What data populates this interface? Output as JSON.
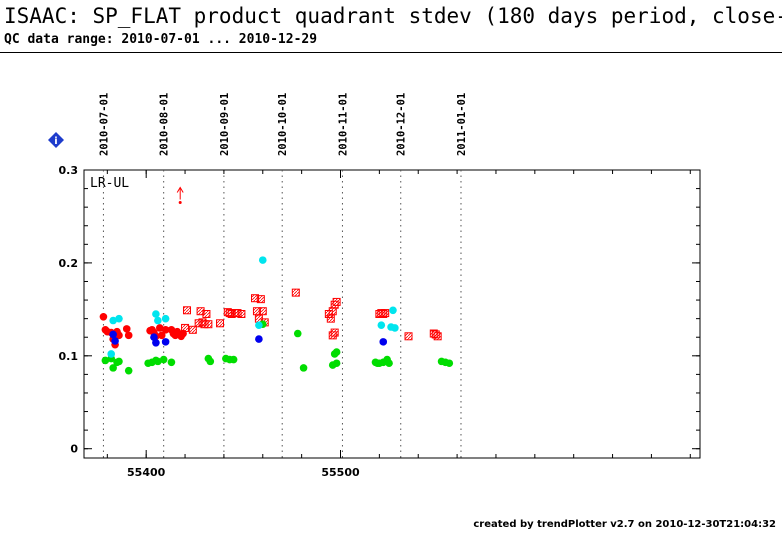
{
  "title": "ISAAC: SP_FLAT product quadrant stdev (180 days period, close-u",
  "subtitle": "QC data range: 2010-07-01 ... 2010-12-29",
  "footer": "created by trendPlotter v2.7 on 2010-12-30T21:04:32",
  "info_icon": "diamond-info-icon",
  "colors": {
    "red": "#ff0000",
    "green": "#00dd00",
    "blue": "#0000ee",
    "cyan": "#00e5ee",
    "marker_icon": "#1e3ccc"
  },
  "chart_data": {
    "type": "scatter",
    "panel_label": "LR-UL",
    "ylim": [
      -0.01,
      0.3
    ],
    "xlim": [
      55368,
      55685
    ],
    "yticks": [
      0,
      0.1,
      0.2,
      0.3
    ],
    "ytick_labels": [
      "0",
      "0.1",
      "0.2",
      "0.3"
    ],
    "xticks": [
      55400,
      55500
    ],
    "xtick_labels": [
      "55400",
      "55500"
    ],
    "date_markers": [
      {
        "label": "2010-07-01",
        "mjd": 55378
      },
      {
        "label": "2010-08-01",
        "mjd": 55409
      },
      {
        "label": "2010-09-01",
        "mjd": 55440
      },
      {
        "label": "2010-10-01",
        "mjd": 55470
      },
      {
        "label": "2010-11-01",
        "mjd": 55501
      },
      {
        "label": "2010-12-01",
        "mjd": 55531
      },
      {
        "label": "2011-01-01",
        "mjd": 55562
      }
    ],
    "outlier": {
      "x": 55417.5,
      "y": 0.265
    },
    "series": [
      {
        "marker": "red-dot",
        "points": [
          [
            55378,
            0.142
          ],
          [
            55379,
            0.128
          ],
          [
            55380,
            0.126
          ],
          [
            55382,
            0.125
          ],
          [
            55383,
            0.118
          ],
          [
            55384,
            0.112
          ],
          [
            55385,
            0.126
          ],
          [
            55386,
            0.122
          ],
          [
            55390,
            0.129
          ],
          [
            55391,
            0.122
          ],
          [
            55402,
            0.127
          ],
          [
            55403,
            0.128
          ],
          [
            55404,
            0.125
          ],
          [
            55405,
            0.121
          ],
          [
            55407,
            0.13
          ],
          [
            55408,
            0.122
          ],
          [
            55410,
            0.128
          ],
          [
            55413,
            0.128
          ],
          [
            55414,
            0.124
          ],
          [
            55415,
            0.122
          ],
          [
            55416,
            0.126
          ],
          [
            55417,
            0.123
          ],
          [
            55418,
            0.121
          ],
          [
            55419,
            0.124
          ]
        ]
      },
      {
        "marker": "red-hatched-square",
        "points": [
          [
            55420,
            0.13
          ],
          [
            55421,
            0.149
          ],
          [
            55424,
            0.128
          ],
          [
            55427,
            0.135
          ],
          [
            55428,
            0.148
          ],
          [
            55429,
            0.136
          ],
          [
            55430,
            0.134
          ],
          [
            55431,
            0.145
          ],
          [
            55432,
            0.134
          ],
          [
            55438,
            0.135
          ],
          [
            55442,
            0.147
          ],
          [
            55443,
            0.146
          ],
          [
            55444,
            0.145
          ],
          [
            55446,
            0.146
          ],
          [
            55447,
            0.146
          ],
          [
            55449,
            0.145
          ],
          [
            55456,
            0.162
          ],
          [
            55457,
            0.148
          ],
          [
            55458,
            0.14
          ],
          [
            55459,
            0.161
          ],
          [
            55460,
            0.148
          ],
          [
            55461,
            0.136
          ],
          [
            55477,
            0.168
          ],
          [
            55494,
            0.145
          ],
          [
            55495,
            0.14
          ],
          [
            55496,
            0.148
          ],
          [
            55497,
            0.155
          ],
          [
            55498,
            0.158
          ],
          [
            55497,
            0.125
          ],
          [
            55496,
            0.122
          ],
          [
            55520,
            0.145
          ],
          [
            55521,
            0.146
          ],
          [
            55522,
            0.145
          ],
          [
            55523,
            0.146
          ],
          [
            55535,
            0.121
          ],
          [
            55548,
            0.124
          ],
          [
            55549,
            0.123
          ],
          [
            55550,
            0.121
          ]
        ]
      },
      {
        "marker": "green-dot",
        "points": [
          [
            55379,
            0.095
          ],
          [
            55382,
            0.097
          ],
          [
            55383,
            0.087
          ],
          [
            55385,
            0.093
          ],
          [
            55386,
            0.094
          ],
          [
            55391,
            0.084
          ],
          [
            55401,
            0.092
          ],
          [
            55403,
            0.093
          ],
          [
            55405,
            0.095
          ],
          [
            55406,
            0.094
          ],
          [
            55409,
            0.096
          ],
          [
            55413,
            0.093
          ],
          [
            55432,
            0.097
          ],
          [
            55433,
            0.094
          ],
          [
            55441,
            0.097
          ],
          [
            55443,
            0.096
          ],
          [
            55445,
            0.096
          ],
          [
            55460,
            0.134
          ],
          [
            55478,
            0.124
          ],
          [
            55481,
            0.087
          ],
          [
            55496,
            0.09
          ],
          [
            55497,
            0.102
          ],
          [
            55498,
            0.104
          ],
          [
            55498,
            0.092
          ],
          [
            55518,
            0.093
          ],
          [
            55519,
            0.092
          ],
          [
            55520,
            0.092
          ],
          [
            55522,
            0.093
          ],
          [
            55524,
            0.096
          ],
          [
            55525,
            0.092
          ],
          [
            55552,
            0.094
          ],
          [
            55554,
            0.093
          ],
          [
            55556,
            0.092
          ]
        ]
      },
      {
        "marker": "blue-dot",
        "points": [
          [
            55383,
            0.123
          ],
          [
            55384,
            0.116
          ],
          [
            55404,
            0.12
          ],
          [
            55405,
            0.114
          ],
          [
            55410,
            0.115
          ],
          [
            55458,
            0.118
          ],
          [
            55522,
            0.115
          ]
        ]
      },
      {
        "marker": "cyan-dot",
        "points": [
          [
            55383,
            0.138
          ],
          [
            55386,
            0.14
          ],
          [
            55382,
            0.102
          ],
          [
            55405,
            0.145
          ],
          [
            55406,
            0.138
          ],
          [
            55410,
            0.14
          ],
          [
            55460,
            0.203
          ],
          [
            55458,
            0.133
          ],
          [
            55521,
            0.133
          ],
          [
            55527,
            0.149
          ],
          [
            55526,
            0.131
          ],
          [
            55528,
            0.13
          ]
        ]
      }
    ]
  }
}
